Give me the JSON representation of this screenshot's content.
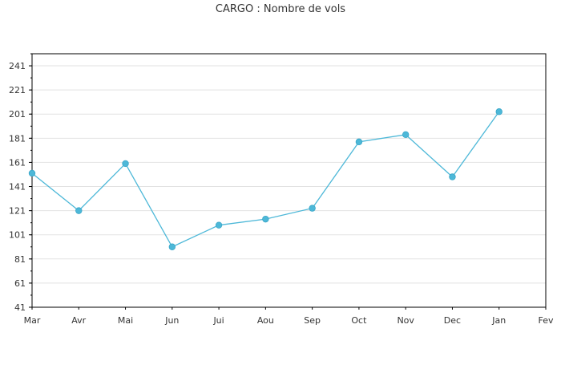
{
  "chart_data": {
    "type": "line",
    "title": "CARGO : Nombre de vols",
    "categories": [
      "Mar",
      "Avr",
      "Mai",
      "Jun",
      "Jui",
      "Aou",
      "Sep",
      "Oct",
      "Nov",
      "Dec",
      "Jan",
      "Fev"
    ],
    "series": [
      {
        "values": [
          152,
          121,
          160,
          91,
          109,
          114,
          123,
          178,
          184,
          149,
          203,
          null
        ]
      }
    ],
    "yticks": [
      41,
      61,
      81,
      101,
      121,
      141,
      161,
      181,
      201,
      221,
      241
    ],
    "ylim": [
      41,
      251
    ],
    "grid": true,
    "line_color": "#4db8d8"
  }
}
